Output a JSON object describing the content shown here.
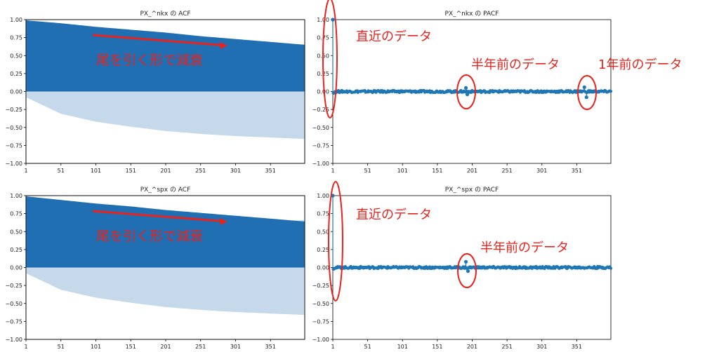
{
  "chart_data": [
    {
      "type": "area",
      "title": "PX_^nkx の ACF",
      "xlabel": "",
      "ylabel": "",
      "xlim": [
        1,
        400
      ],
      "ylim": [
        -1.0,
        1.0
      ],
      "xticks": [
        "1",
        "51",
        "101",
        "151",
        "201",
        "251",
        "301",
        "351"
      ],
      "yticks": [
        "1.00",
        "0.75",
        "0.50",
        "0.25",
        "0.00",
        "−0.25",
        "−0.50",
        "−0.75",
        "−1.00"
      ],
      "series": [
        {
          "values_at_ticks": {
            "x": [
              1,
              51,
              101,
              151,
              201,
              251,
              301,
              351,
              400
            ],
            "acf": [
              0.99,
              0.95,
              0.9,
              0.86,
              0.82,
              0.77,
              0.73,
              0.69,
              0.65
            ],
            "conf_band": [
              0.08,
              0.31,
              0.42,
              0.49,
              0.55,
              0.59,
              0.62,
              0.64,
              0.66
            ]
          }
        }
      ],
      "annotations": [
        {
          "text": "尾を引く形で減衰",
          "color": "#e8231d",
          "kind": "arrow-label"
        }
      ],
      "grid": false
    },
    {
      "type": "scatter",
      "title": "PX_^nkx の PACF",
      "xlabel": "",
      "ylabel": "",
      "xlim": [
        1,
        400
      ],
      "ylim": [
        -1.0,
        1.0
      ],
      "xticks": [
        "1",
        "51",
        "101",
        "151",
        "201",
        "251",
        "301",
        "351"
      ],
      "yticks": [
        "1.00",
        "0.75",
        "0.50",
        "0.25",
        "0.00",
        "−0.25",
        "−0.50",
        "−0.75",
        "−1.00"
      ],
      "spikes": [
        {
          "x": 1,
          "y": 1.0
        },
        {
          "x": 2,
          "y": -0.02
        },
        {
          "x": 192,
          "y": 0.05
        },
        {
          "x": 194,
          "y": -0.04
        },
        {
          "x": 362,
          "y": 0.06
        },
        {
          "x": 365,
          "y": -0.08
        }
      ],
      "noise_level": 0.015,
      "annotations": [
        {
          "text": "直近のデータ",
          "color": "#e8231d",
          "kind": "ellipse-label"
        },
        {
          "text": "半年前のデータ",
          "color": "#e8231d",
          "kind": "ellipse-label"
        },
        {
          "text": "1年前のデータ",
          "color": "#e8231d",
          "kind": "ellipse-label"
        }
      ],
      "grid": false
    },
    {
      "type": "area",
      "title": "PX_^spx の ACF",
      "xlabel": "",
      "ylabel": "",
      "xlim": [
        1,
        400
      ],
      "ylim": [
        -1.0,
        1.0
      ],
      "xticks": [
        "1",
        "51",
        "101",
        "151",
        "201",
        "251",
        "301",
        "351"
      ],
      "yticks": [
        "1.00",
        "0.75",
        "0.50",
        "0.25",
        "0.00",
        "−0.25",
        "−0.50",
        "−0.75",
        "−1.00"
      ],
      "series": [
        {
          "values_at_ticks": {
            "x": [
              1,
              51,
              101,
              151,
              201,
              251,
              301,
              351,
              400
            ],
            "acf": [
              0.99,
              0.94,
              0.89,
              0.85,
              0.8,
              0.76,
              0.72,
              0.68,
              0.64
            ],
            "conf_band": [
              0.08,
              0.31,
              0.42,
              0.49,
              0.55,
              0.59,
              0.62,
              0.64,
              0.66
            ]
          }
        }
      ],
      "annotations": [
        {
          "text": "尾を引く形で減衰",
          "color": "#e8231d",
          "kind": "arrow-label"
        }
      ],
      "grid": false
    },
    {
      "type": "scatter",
      "title": "PX_^spx の PACF",
      "xlabel": "",
      "ylabel": "",
      "xlim": [
        1,
        400
      ],
      "ylim": [
        -1.0,
        1.0
      ],
      "xticks": [
        "1",
        "51",
        "101",
        "151",
        "201",
        "251",
        "301",
        "351"
      ],
      "yticks": [
        "1.00",
        "0.75",
        "0.50",
        "0.25",
        "0.00",
        "−0.25",
        "−0.50",
        "−0.75",
        "−1.00"
      ],
      "spikes": [
        {
          "x": 1,
          "y": 1.0
        },
        {
          "x": 2,
          "y": -0.02
        },
        {
          "x": 192,
          "y": 0.08
        },
        {
          "x": 195,
          "y": -0.05
        }
      ],
      "noise_level": 0.015,
      "annotations": [
        {
          "text": "直近のデータ",
          "color": "#e8231d",
          "kind": "ellipse-label"
        },
        {
          "text": "半年前のデータ",
          "color": "#e8231d",
          "kind": "ellipse-label"
        }
      ],
      "grid": false
    }
  ],
  "colors": {
    "acf_fill": "#1f6fb2",
    "conf_fill": "#c6d9ea",
    "pacf": "#1f77b4",
    "annotation": "#e8231d",
    "axis": "#000000"
  }
}
